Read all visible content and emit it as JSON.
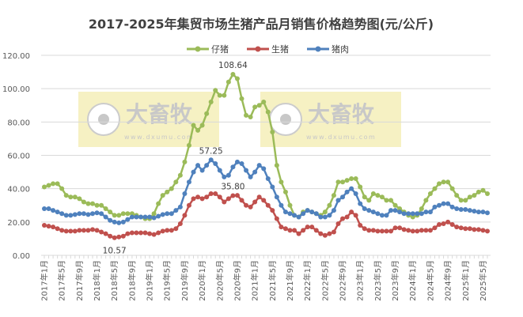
{
  "chart_data": {
    "type": "line",
    "title": "2017-2025年集贸市场生猪产品月销售价格趋势图(元/公斤)",
    "xlabel": "",
    "ylabel": "",
    "ylim": [
      0,
      120
    ],
    "yticks": [
      "0.00",
      "20.00",
      "40.00",
      "60.00",
      "80.00",
      "100.00",
      "120.00"
    ],
    "grid": true,
    "legend_position": "top",
    "x_tick_labels": [
      "2017年1月",
      "2017年5月",
      "2017年9月",
      "2018年1月",
      "2018年5月",
      "2018年9月",
      "2019年1月",
      "2019年5月",
      "2019年9月",
      "2020年1月",
      "2020年5月",
      "2020年9月",
      "2021年1月",
      "2021年5月",
      "2021年9月",
      "2022年1月",
      "2022年5月",
      "2022年9月",
      "2023年1月",
      "2023年5月",
      "2023年9月",
      "2024年1月",
      "2024年5月",
      "2024年9月",
      "2025年1月",
      "2025年5月"
    ],
    "series": [
      {
        "name": "仔猪",
        "color": "#9bbb59",
        "values": [
          41,
          42,
          43,
          43,
          40,
          36,
          35,
          35,
          34,
          32,
          31,
          31,
          30,
          30,
          28,
          26,
          24,
          24,
          25,
          25,
          25,
          24,
          23,
          22,
          22,
          25,
          31,
          36,
          38,
          40,
          44,
          48,
          56,
          66,
          78,
          75,
          78,
          85,
          92,
          99,
          96,
          96,
          104,
          108.64,
          106,
          94,
          84,
          83,
          89,
          90,
          92,
          86,
          74,
          54,
          44,
          38,
          30,
          24,
          23,
          26,
          27,
          26,
          25,
          24,
          26,
          30,
          36,
          44,
          44,
          45,
          46,
          46,
          41,
          35,
          33,
          37,
          36,
          35,
          33,
          33,
          30,
          28,
          26,
          24,
          23,
          24,
          28,
          33,
          37,
          40,
          43,
          44,
          44,
          40,
          36,
          33,
          33,
          35,
          36,
          38,
          39,
          37
        ]
      },
      {
        "name": "生猪",
        "color": "#c0504d",
        "values": [
          18,
          17.5,
          17,
          16,
          15,
          14.5,
          14.5,
          14.5,
          15,
          15,
          15,
          15.5,
          15,
          14,
          13,
          11.5,
          10.57,
          11,
          11.5,
          13,
          13.5,
          13.5,
          13.5,
          13.5,
          13,
          12.5,
          13.5,
          14.5,
          15,
          15,
          16,
          19,
          24,
          30,
          34,
          35,
          34,
          35,
          37,
          37,
          35,
          32,
          34,
          35.8,
          36,
          33,
          30,
          29,
          32,
          35,
          33,
          30,
          27,
          22,
          17,
          16,
          15,
          15,
          13,
          15,
          17,
          17,
          15,
          13,
          12,
          13,
          14,
          19,
          22,
          23,
          26,
          24,
          18,
          16,
          15,
          15,
          14.5,
          14.5,
          14.5,
          14.5,
          16.5,
          16.5,
          15.5,
          15,
          14.5,
          14.5,
          15,
          15,
          15,
          16.5,
          18.5,
          19,
          20,
          18.5,
          17,
          16.5,
          16,
          16,
          15.5,
          15.5,
          15,
          14.5
        ]
      },
      {
        "name": "猪肉",
        "color": "#4f81bd",
        "values": [
          28,
          28,
          27,
          26,
          25,
          24,
          24,
          24.5,
          25,
          25,
          24.5,
          25,
          25.5,
          25,
          23,
          21,
          20,
          19.5,
          20,
          21.5,
          23,
          23,
          23,
          23,
          23,
          22.5,
          23.5,
          24.5,
          25,
          25,
          27,
          29,
          37,
          44,
          50,
          54,
          51,
          54,
          57.25,
          55,
          51,
          47,
          48,
          53,
          56,
          55,
          51,
          47,
          50,
          54,
          52,
          46,
          41,
          35,
          30,
          26,
          25,
          24,
          23,
          25,
          27,
          26,
          25,
          23,
          23,
          24,
          27,
          33,
          35,
          38,
          40,
          37,
          31,
          28,
          27,
          26,
          25,
          24,
          24,
          27,
          27,
          26,
          25,
          25,
          25,
          25,
          25,
          26,
          26,
          29,
          30,
          31,
          31,
          29,
          28,
          27.5,
          27.5,
          27,
          26.5,
          26,
          26,
          25.5
        ]
      }
    ],
    "data_labels": [
      {
        "series": "仔猪",
        "index": 43,
        "text": "108.64"
      },
      {
        "series": "猪肉",
        "index": 38,
        "text": "57.25"
      },
      {
        "series": "生猪",
        "index": 43,
        "text": "35.80"
      },
      {
        "series": "生猪",
        "index": 16,
        "text": "10.57"
      }
    ]
  },
  "watermark": {
    "brand": "大畜牧",
    "url": "www.dxumu.com",
    "bg": "#f5efb8"
  }
}
